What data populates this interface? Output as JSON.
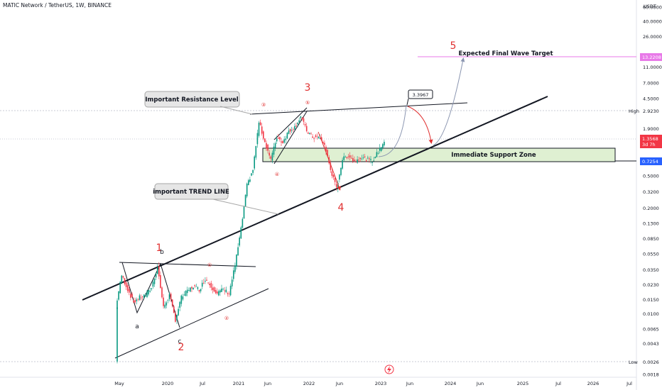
{
  "header": {
    "symbol_line": "MATIC Network / TetherUS, 1W, BINANCE"
  },
  "colors": {
    "up": "#089981",
    "down": "#f23645",
    "accent_red": "#e03030",
    "target_line": "#e879e8",
    "support_fill": "#dff0d2",
    "price_label_bg": "#2962ff"
  },
  "chart_data": {
    "type": "candlestick",
    "y_scale": "log",
    "y_currency": "USDT",
    "x_tick_labels": [
      "May",
      "2020",
      "Jul",
      "2021",
      "Jun",
      "2022",
      "Jun",
      "2023",
      "Jun",
      "2024",
      "Jun",
      "2025",
      "Jul",
      "2026",
      "Jul"
    ],
    "y_tick_labels": [
      "60.0000",
      "40.0000",
      "26.0000",
      "17.0000",
      "11.0000",
      "7.0000",
      "4.5000",
      "2.9230",
      "1.9000",
      "1.2000",
      "0.8000",
      "0.5000",
      "0.3200",
      "0.2000",
      "0.1300",
      "0.0850",
      "0.0550",
      "0.0350",
      "0.0230",
      "0.0150",
      "0.0100",
      "0.0065",
      "0.0043",
      "0.0026",
      "0.0018"
    ],
    "price_labels": {
      "target": "13.2208",
      "high_label": "High",
      "high_value": "2.9230",
      "current": "1.3568",
      "countdown": "3d 7h",
      "support": "0.7254",
      "low_label": "Low",
      "low_value": "0.0026"
    },
    "price_path": [
      [
        "2019-05",
        0.0026
      ],
      [
        "2019-05",
        0.012
      ],
      [
        "2019-06",
        0.03
      ],
      [
        "2019-07",
        0.02
      ],
      [
        "2019-08",
        0.014
      ],
      [
        "2019-09",
        0.016
      ],
      [
        "2019-10",
        0.017
      ],
      [
        "2019-11",
        0.021
      ],
      [
        "2019-12",
        0.038
      ],
      [
        "2020-01",
        0.012
      ],
      [
        "2020-02",
        0.017
      ],
      [
        "2020-03",
        0.0085
      ],
      [
        "2020-04",
        0.016
      ],
      [
        "2020-05",
        0.019
      ],
      [
        "2020-06",
        0.022
      ],
      [
        "2020-07",
        0.02
      ],
      [
        "2020-08",
        0.027
      ],
      [
        "2020-09",
        0.022
      ],
      [
        "2020-10",
        0.018
      ],
      [
        "2020-11",
        0.02
      ],
      [
        "2020-12",
        0.018
      ],
      [
        "2021-01",
        0.04
      ],
      [
        "2021-02",
        0.11
      ],
      [
        "2021-03",
        0.38
      ],
      [
        "2021-04",
        0.6
      ],
      [
        "2021-05",
        2.3
      ],
      [
        "2021-06",
        1.3
      ],
      [
        "2021-07",
        0.8
      ],
      [
        "2021-08",
        1.5
      ],
      [
        "2021-09",
        1.3
      ],
      [
        "2021-10",
        1.8
      ],
      [
        "2021-11",
        2.0
      ],
      [
        "2021-12",
        2.7
      ],
      [
        "2022-01",
        1.8
      ],
      [
        "2022-02",
        1.5
      ],
      [
        "2022-03",
        1.5
      ],
      [
        "2022-04",
        1.2
      ],
      [
        "2022-05",
        0.6
      ],
      [
        "2022-06",
        0.35
      ],
      [
        "2022-07",
        0.8
      ],
      [
        "2022-08",
        0.9
      ],
      [
        "2022-09",
        0.75
      ],
      [
        "2022-10",
        0.85
      ],
      [
        "2022-11",
        0.8
      ],
      [
        "2022-12",
        0.76
      ],
      [
        "2023-01",
        1.0
      ],
      [
        "2023-02",
        1.3568
      ]
    ],
    "projection_path": [
      [
        "2023-02",
        1.3568
      ],
      [
        "2023-04",
        3.3967
      ],
      [
        "2023-08",
        0.85
      ],
      [
        "2024-01",
        13.2208
      ]
    ],
    "levels": {
      "projection_peak": "3.3967",
      "expected_target": "13.2208"
    },
    "annotations": [
      {
        "text": "Important Resistance Level"
      },
      {
        "text": "important TREND LINE"
      },
      {
        "text": "Immediate Support Zone"
      },
      {
        "text": "Expected Final Wave Target"
      },
      {
        "text": "3.3967"
      }
    ],
    "wave_labels_major": [
      "1",
      "2",
      "3",
      "4",
      "5"
    ],
    "wave_labels_minor": [
      "①",
      "②",
      "③",
      "④",
      "⑤"
    ],
    "wave_letters": [
      "a",
      "b",
      "c"
    ],
    "flag_icon": "lightning-icon"
  }
}
